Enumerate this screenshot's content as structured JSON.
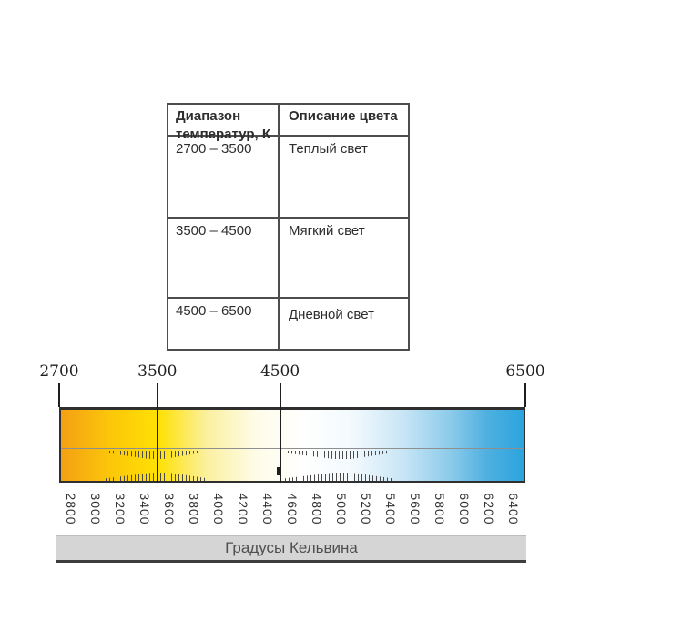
{
  "table": {
    "header": [
      "Диапазон температур, К",
      "Описание цвета"
    ],
    "rows": [
      {
        "range": "2700 – 3500",
        "description": "Теплый свет"
      },
      {
        "range": "3500 – 4500",
        "description": "Мягкий свет"
      },
      {
        "range": "4500 – 6500",
        "description": "Дневной свет"
      }
    ]
  },
  "chart_data": {
    "type": "heatmap",
    "title": "Градусы Кельвина",
    "axis": {
      "min": 2700,
      "max": 6500,
      "unit": "K",
      "major_markers": [
        {
          "value": "2700",
          "kelvin": 2700,
          "through_bar": false
        },
        {
          "value": "3500",
          "kelvin": 3500,
          "through_bar": true
        },
        {
          "value": "4500",
          "kelvin": 4500,
          "through_bar": true
        },
        {
          "value": "6500",
          "kelvin": 6500,
          "through_bar": false
        }
      ],
      "minor_ticks": [
        2800,
        3000,
        3200,
        3400,
        3600,
        3800,
        4000,
        4200,
        4400,
        4600,
        4800,
        5000,
        5200,
        5400,
        5600,
        5800,
        6000,
        6200,
        6400
      ]
    },
    "segments": [
      {
        "range": "2700 – 3500",
        "label": "Теплый свет"
      },
      {
        "range": "3500 – 4500",
        "label": "Мягкий свет"
      },
      {
        "range": "4500 – 6500",
        "label": "Дневной свет"
      }
    ],
    "gradient_stops": [
      {
        "kelvin": 2700,
        "color": "#f4a013"
      },
      {
        "kelvin": 3100,
        "color": "#fcc60a"
      },
      {
        "kelvin": 3500,
        "color": "#ffe104"
      },
      {
        "kelvin": 3900,
        "color": "#fbf0a0"
      },
      {
        "kelvin": 4300,
        "color": "#fefce8"
      },
      {
        "kelvin": 4700,
        "color": "#ffffff"
      },
      {
        "kelvin": 5100,
        "color": "#f2f9fd"
      },
      {
        "kelvin": 5500,
        "color": "#c9e6f6"
      },
      {
        "kelvin": 5900,
        "color": "#8ccbea"
      },
      {
        "kelvin": 6200,
        "color": "#4fb0e0"
      },
      {
        "kelvin": 6500,
        "color": "#2ba4de"
      }
    ]
  }
}
